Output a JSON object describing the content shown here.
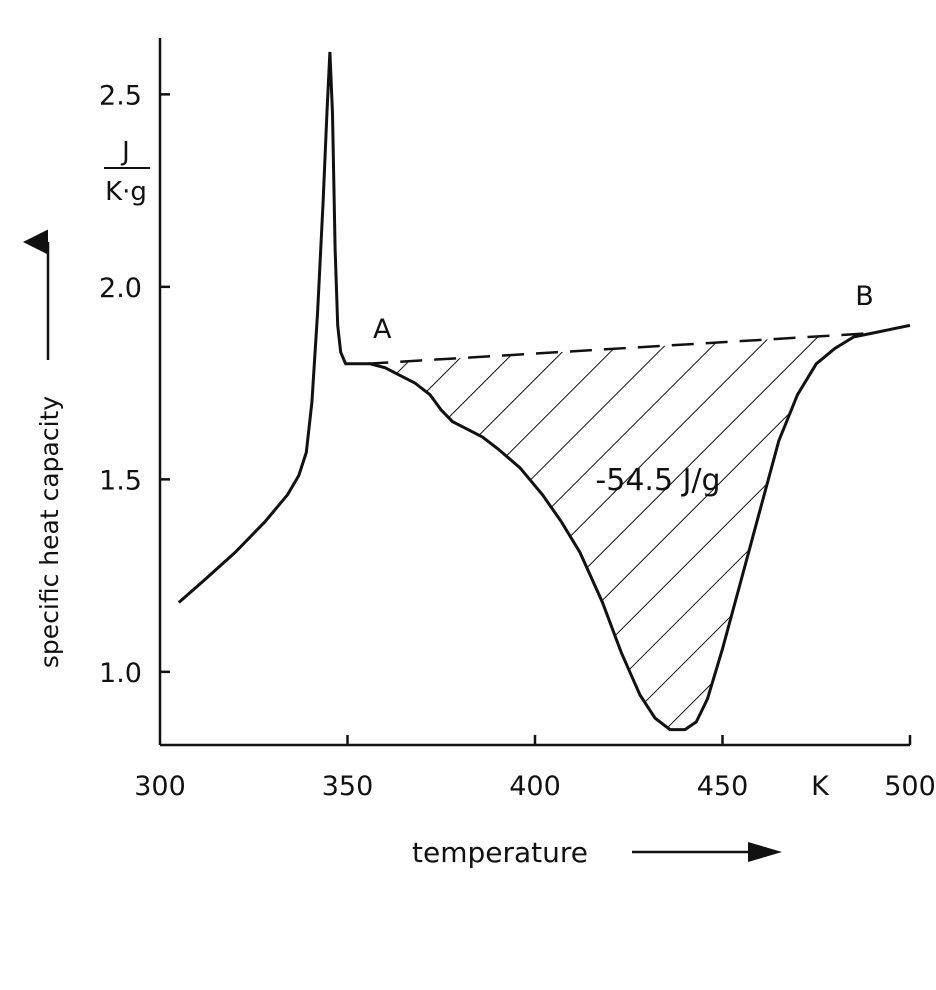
{
  "chart_data": {
    "type": "line",
    "xlabel": "temperature",
    "ylabel": "specific heat capacity",
    "y_unit_numerator": "J",
    "y_unit_denominator": "K·g",
    "x_unit": "K",
    "xlim": [
      300,
      500
    ],
    "ylim": [
      0.81,
      2.61
    ],
    "x_ticks": [
      {
        "value": 300,
        "label": "300"
      },
      {
        "value": 350,
        "label": "350"
      },
      {
        "value": 400,
        "label": "400"
      },
      {
        "value": 450,
        "label": "450"
      },
      {
        "value": 500,
        "label": "500"
      }
    ],
    "y_ticks": [
      {
        "value": 1.0,
        "label": "1.0"
      },
      {
        "value": 1.5,
        "label": "1.5"
      },
      {
        "value": 2.0,
        "label": "2.0"
      },
      {
        "value": 2.5,
        "label": "2.5"
      }
    ],
    "grid": false,
    "series": [
      {
        "x": [
          305,
          312,
          320,
          328,
          334,
          337,
          339,
          340.5,
          342,
          343.5,
          344.5,
          345.3,
          346,
          346.7,
          347.4,
          348.2,
          349.5,
          352,
          356,
          360,
          364,
          368,
          372,
          375,
          378,
          382,
          386,
          390,
          396,
          402,
          407,
          412,
          418,
          423,
          428,
          432,
          436,
          440,
          443,
          446,
          450,
          455,
          460,
          465,
          470,
          475,
          480,
          485,
          490,
          495,
          500
        ],
        "y": [
          1.18,
          1.24,
          1.31,
          1.39,
          1.46,
          1.51,
          1.57,
          1.7,
          1.93,
          2.22,
          2.45,
          2.61,
          2.45,
          2.1,
          1.9,
          1.83,
          1.8,
          1.8,
          1.8,
          1.79,
          1.77,
          1.75,
          1.72,
          1.68,
          1.65,
          1.63,
          1.61,
          1.58,
          1.53,
          1.46,
          1.39,
          1.31,
          1.18,
          1.05,
          0.94,
          0.88,
          0.85,
          0.85,
          0.87,
          0.93,
          1.06,
          1.24,
          1.42,
          1.6,
          1.72,
          1.8,
          1.84,
          1.87,
          1.88,
          1.89,
          1.9
        ]
      }
    ],
    "baseline": {
      "x": [
        355,
        490
      ],
      "y": [
        1.8,
        1.88
      ]
    },
    "points": [
      {
        "label": "A",
        "x": 355,
        "y": 1.8
      },
      {
        "label": "B",
        "x": 490,
        "y": 1.875
      }
    ],
    "shaded_area_label": "-54.5  J/g"
  }
}
